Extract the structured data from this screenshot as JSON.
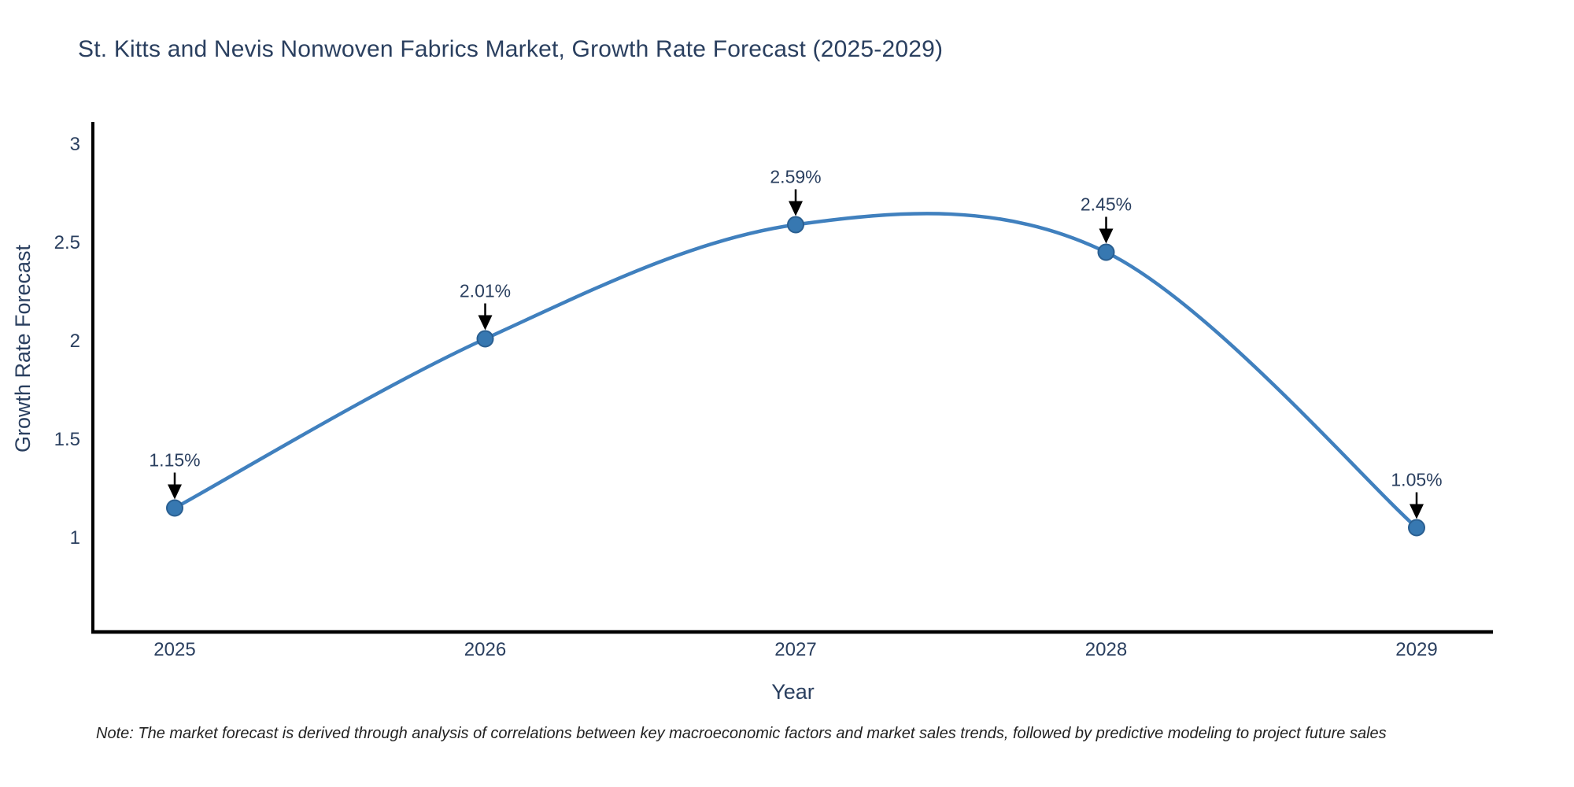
{
  "title": "St. Kitts and Nevis Nonwoven Fabrics Market, Growth Rate Forecast (2025-2029)",
  "note": "Note: The market forecast is derived through analysis of correlations between key macroeconomic factors and market sales trends, followed by predictive modeling to project future sales",
  "chart_data": {
    "type": "line",
    "line_shape": "spline",
    "title": "St. Kitts and Nevis Nonwoven Fabrics Market, Growth Rate Forecast (2025-2029)",
    "xlabel": "Year",
    "ylabel": "Growth Rate Forecast",
    "categories": [
      "2025",
      "2026",
      "2027",
      "2028",
      "2029"
    ],
    "values": [
      1.15,
      2.01,
      2.59,
      2.45,
      1.05
    ],
    "point_labels": [
      "1.15%",
      "2.01%",
      "2.59%",
      "2.45%",
      "1.05%"
    ],
    "yticks": [
      1,
      1.5,
      2,
      2.5,
      3
    ],
    "ylim": [
      0.52,
      3.11
    ],
    "grid": false,
    "legend": "none",
    "colors": {
      "line": "#4080be",
      "marker_fill": "#3778b1",
      "marker_edge": "#2a5f91",
      "axis_line": "#000000",
      "tick_text": "#2a3f5f",
      "annotation_text": "#2a3f5f",
      "annotation_arrow": "#000000"
    }
  }
}
